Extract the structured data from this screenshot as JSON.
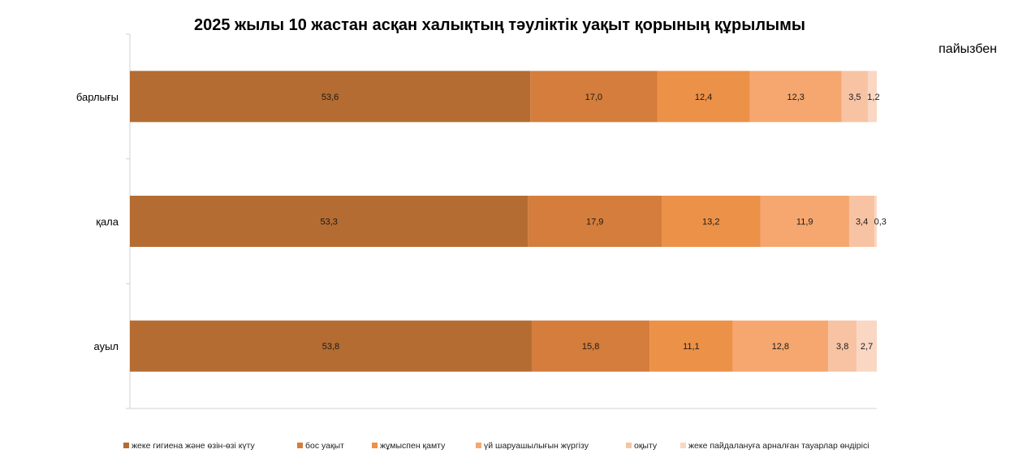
{
  "chart_data": {
    "type": "bar",
    "orientation": "horizontal",
    "stacked": true,
    "title": "2025 жылы 10 жастан асқан халықтың тәуліктік уақыт қорының құрылымы",
    "unit": "пайызбен",
    "categories": [
      "барлығы",
      "қала",
      "ауыл"
    ],
    "series": [
      {
        "name": "жеке гигиена және өзін-өзі күту",
        "color": "#B46C32",
        "values": [
          53.6,
          53.3,
          53.8
        ],
        "labels": [
          "53,6",
          "53,3",
          "53,8"
        ]
      },
      {
        "name": "бос уақыт",
        "color": "#D47D3C",
        "values": [
          17.0,
          17.9,
          15.8
        ],
        "labels": [
          "17,0",
          "17,9",
          "15,8"
        ]
      },
      {
        "name": "жұмыспен қамту",
        "color": "#EC9148",
        "values": [
          12.4,
          13.2,
          11.1
        ],
        "labels": [
          "12,4",
          "13,2",
          "11,1"
        ]
      },
      {
        "name": "үй шаруашылығын жүргізу",
        "color": "#F5A76F",
        "values": [
          12.3,
          11.9,
          12.8
        ],
        "labels": [
          "12,3",
          "11,9",
          "12,8"
        ]
      },
      {
        "name": "оқыту",
        "color": "#F7C3A3",
        "values": [
          3.5,
          3.4,
          3.8
        ],
        "labels": [
          "3,5",
          "3,4",
          "3,8"
        ]
      },
      {
        "name": "жеке пайдалануға арналған тауарлар өндірісі",
        "color": "#FAD7C3",
        "values": [
          1.2,
          0.3,
          2.7
        ],
        "labels": [
          "1,2",
          "0,3",
          "2,7"
        ]
      }
    ],
    "xlim": [
      0,
      100
    ],
    "grid": false,
    "legend_position": "bottom"
  }
}
